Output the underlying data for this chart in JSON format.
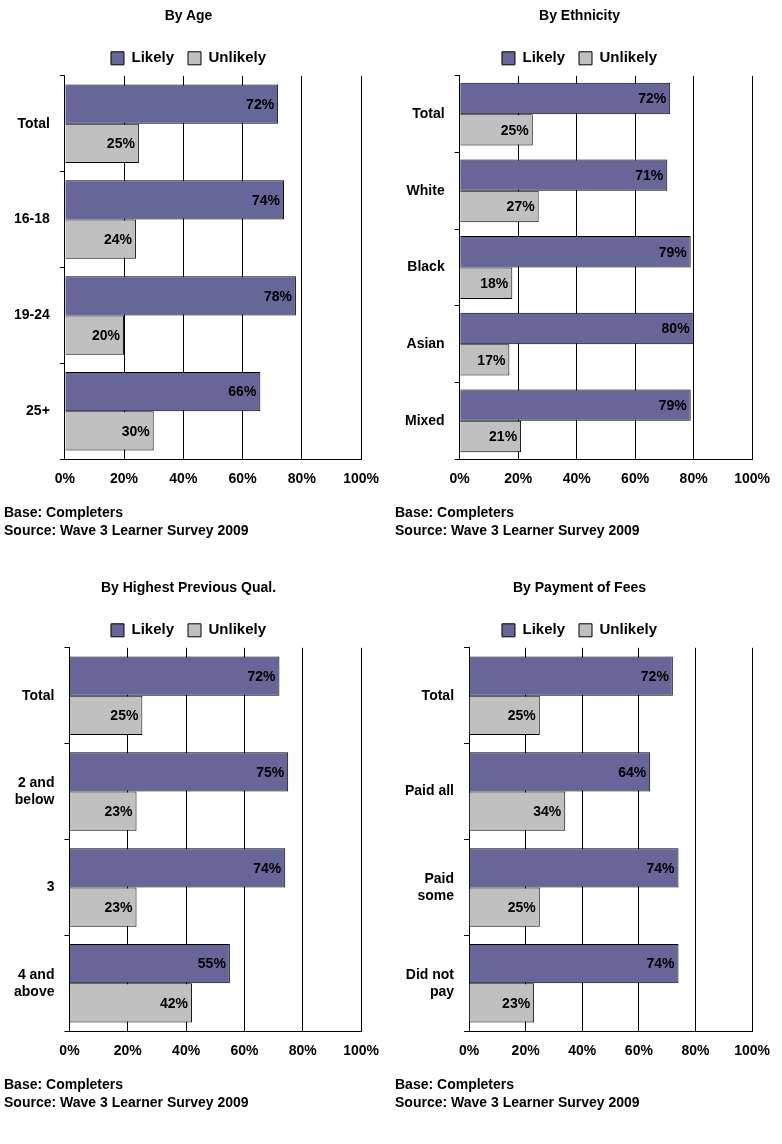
{
  "chart_data": [
    {
      "type": "bar",
      "orientation": "horizontal",
      "title": "By Age",
      "categories": [
        "Total",
        "16-18",
        "19-24",
        "25+"
      ],
      "series": [
        {
          "name": "Likely",
          "color": "#666699",
          "values": [
            72,
            74,
            78,
            66
          ],
          "value_labels": [
            "72%",
            "74%",
            "78%",
            "66%"
          ]
        },
        {
          "name": "Unlikely",
          "color": "#c0c0c0",
          "values": [
            25,
            24,
            20,
            30
          ],
          "value_labels": [
            "25%",
            "24%",
            "20%",
            "30%"
          ]
        }
      ],
      "xlim": [
        0,
        100
      ],
      "xticks": [
        {
          "value": 0,
          "label": "0%"
        },
        {
          "value": 20,
          "label": "20%"
        },
        {
          "value": 40,
          "label": "40%"
        },
        {
          "value": 60,
          "label": "60%"
        },
        {
          "value": 80,
          "label": "80%"
        },
        {
          "value": 100,
          "label": "100%"
        }
      ],
      "grid": "x",
      "legend": "top",
      "annotations": [
        "Base: Completers",
        "Source: Wave 3 Learner Survey 2009"
      ]
    },
    {
      "type": "bar",
      "orientation": "horizontal",
      "title": "By Ethnicity",
      "categories": [
        "Total",
        "White",
        "Black",
        "Asian",
        "Mixed"
      ],
      "series": [
        {
          "name": "Likely",
          "color": "#666699",
          "values": [
            72,
            71,
            79,
            80,
            79
          ],
          "value_labels": [
            "72%",
            "71%",
            "79%",
            "80%",
            "79%"
          ]
        },
        {
          "name": "Unlikely",
          "color": "#c0c0c0",
          "values": [
            25,
            27,
            18,
            17,
            21
          ],
          "value_labels": [
            "25%",
            "27%",
            "18%",
            "17%",
            "21%"
          ]
        }
      ],
      "xlim": [
        0,
        100
      ],
      "xticks": [
        {
          "value": 0,
          "label": "0%"
        },
        {
          "value": 20,
          "label": "20%"
        },
        {
          "value": 40,
          "label": "40%"
        },
        {
          "value": 60,
          "label": "60%"
        },
        {
          "value": 80,
          "label": "80%"
        },
        {
          "value": 100,
          "label": "100%"
        }
      ],
      "grid": "x",
      "legend": "top",
      "annotations": [
        "Base: Completers",
        "Source: Wave 3 Learner Survey 2009"
      ]
    },
    {
      "type": "bar",
      "orientation": "horizontal",
      "title": "By Highest Previous Qual.",
      "categories": [
        "Total",
        "2 and below",
        "3",
        "4 and above"
      ],
      "series": [
        {
          "name": "Likely",
          "color": "#666699",
          "values": [
            72,
            75,
            74,
            55
          ],
          "value_labels": [
            "72%",
            "75%",
            "74%",
            "55%"
          ]
        },
        {
          "name": "Unlikely",
          "color": "#c0c0c0",
          "values": [
            25,
            23,
            23,
            42
          ],
          "value_labels": [
            "25%",
            "23%",
            "23%",
            "42%"
          ]
        }
      ],
      "xlim": [
        0,
        100
      ],
      "xticks": [
        {
          "value": 0,
          "label": "0%"
        },
        {
          "value": 20,
          "label": "20%"
        },
        {
          "value": 40,
          "label": "40%"
        },
        {
          "value": 60,
          "label": "60%"
        },
        {
          "value": 80,
          "label": "80%"
        },
        {
          "value": 100,
          "label": "100%"
        }
      ],
      "grid": "x",
      "legend": "top",
      "annotations": [
        "Base: Completers",
        "Source: Wave 3 Learner Survey 2009"
      ]
    },
    {
      "type": "bar",
      "orientation": "horizontal",
      "title": "By Payment of Fees",
      "categories": [
        "Total",
        "Paid all",
        "Paid some",
        "Did not pay"
      ],
      "series": [
        {
          "name": "Likely",
          "color": "#666699",
          "values": [
            72,
            64,
            74,
            74
          ],
          "value_labels": [
            "72%",
            "64%",
            "74%",
            "74%"
          ]
        },
        {
          "name": "Unlikely",
          "color": "#c0c0c0",
          "values": [
            25,
            34,
            25,
            23
          ],
          "value_labels": [
            "25%",
            "34%",
            "25%",
            "23%"
          ]
        }
      ],
      "xlim": [
        0,
        100
      ],
      "xticks": [
        {
          "value": 0,
          "label": "0%"
        },
        {
          "value": 20,
          "label": "20%"
        },
        {
          "value": 40,
          "label": "40%"
        },
        {
          "value": 60,
          "label": "60%"
        },
        {
          "value": 80,
          "label": "80%"
        },
        {
          "value": 100,
          "label": "100%"
        }
      ],
      "grid": "x",
      "legend": "top",
      "annotations": [
        "Base: Completers",
        "Source: Wave 3 Learner Survey 2009"
      ]
    }
  ]
}
